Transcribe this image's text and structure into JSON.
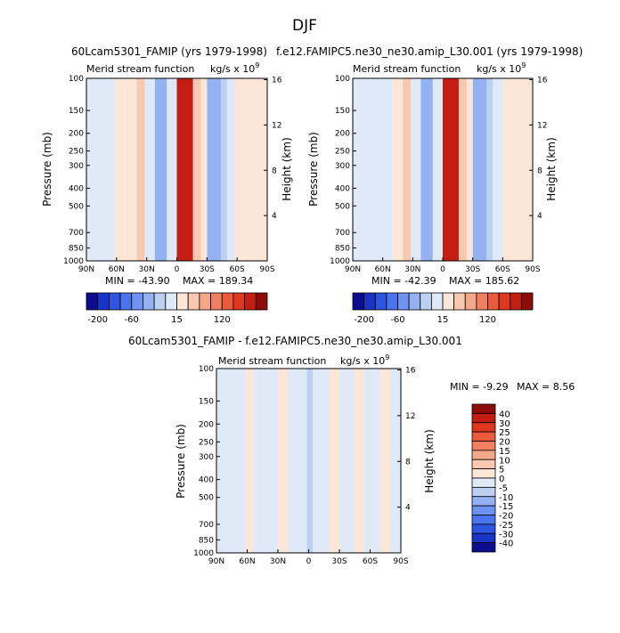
{
  "page_title": "DJF",
  "colors": {
    "neg": [
      "#0c0c8f",
      "#1a33c7",
      "#2d55e0",
      "#4a74ee",
      "#6f93f2",
      "#94b2f2",
      "#bcd1f2",
      "#dfe9f7"
    ],
    "pos": [
      "#fbe6d8",
      "#f8c9b0",
      "#f5a888",
      "#f08060",
      "#ea5a3c",
      "#e0381f",
      "#c41e12",
      "#8d0c08"
    ]
  },
  "chart_data": [
    {
      "type": "contour",
      "title": "60Lcam5301_FAMIP (yrs 1979-1998)",
      "field_label": "Merid stream function",
      "units_label": "kg/s x 10",
      "units_exp": "9",
      "ylabel": "Pressure (mb)",
      "ylabel_right": "Height (km)",
      "x_ticks": [
        "90N",
        "60N",
        "30N",
        "0",
        "30S",
        "60S",
        "90S"
      ],
      "y_ticks": [
        "100",
        "150",
        "200",
        "250",
        "300",
        "400",
        "500",
        "700",
        "850",
        "1000"
      ],
      "y_right_ticks": [
        "16",
        "12",
        "8",
        "4"
      ],
      "min_label": "MIN = -43.90",
      "max_label": "MAX = 189.34",
      "colorbar_labels": [
        "-200",
        "-60",
        "15",
        "120"
      ],
      "cells": [
        {
          "lat_from": -90,
          "lat_to": -58,
          "level": 8
        },
        {
          "lat_from": -58,
          "lat_to": -50,
          "level": 7
        },
        {
          "lat_from": -50,
          "lat_to": -44,
          "level": 6
        },
        {
          "lat_from": -44,
          "lat_to": -30,
          "level": 5
        },
        {
          "lat_from": -30,
          "lat_to": -24,
          "level": 8
        },
        {
          "lat_from": -24,
          "lat_to": -16,
          "level": 9
        },
        {
          "lat_from": -16,
          "lat_to": 0,
          "level": 14
        },
        {
          "lat_from": 0,
          "lat_to": 10,
          "level": 7
        },
        {
          "lat_from": 10,
          "lat_to": 22,
          "level": 5
        },
        {
          "lat_from": 22,
          "lat_to": 32,
          "level": 7
        },
        {
          "lat_from": 32,
          "lat_to": 40,
          "level": 9
        },
        {
          "lat_from": 40,
          "lat_to": 52,
          "level": 8
        },
        {
          "lat_from": 52,
          "lat_to": 62,
          "level": 8
        },
        {
          "lat_from": 62,
          "lat_to": 90,
          "level": 7
        }
      ]
    },
    {
      "type": "contour",
      "title": "f.e12.FAMIPC5.ne30_ne30.amip_L30.001 (yrs 1979-1998)",
      "field_label": "Merid stream function",
      "units_label": "kg/s x 10",
      "units_exp": "9",
      "ylabel": "Pressure (mb)",
      "ylabel_right": "Height (km)",
      "x_ticks": [
        "90N",
        "60N",
        "30N",
        "0",
        "30S",
        "60S",
        "90S"
      ],
      "y_ticks": [
        "100",
        "150",
        "200",
        "250",
        "300",
        "400",
        "500",
        "700",
        "850",
        "1000"
      ],
      "y_right_ticks": [
        "16",
        "12",
        "8",
        "4"
      ],
      "min_label": "MIN = -42.39",
      "max_label": "MAX = 185.62",
      "colorbar_labels": [
        "-200",
        "-60",
        "15",
        "120"
      ],
      "cells": [
        {
          "lat_from": -90,
          "lat_to": -60,
          "level": 8
        },
        {
          "lat_from": -60,
          "lat_to": -50,
          "level": 7
        },
        {
          "lat_from": -50,
          "lat_to": -44,
          "level": 6
        },
        {
          "lat_from": -44,
          "lat_to": -30,
          "level": 5
        },
        {
          "lat_from": -30,
          "lat_to": -24,
          "level": 8
        },
        {
          "lat_from": -24,
          "lat_to": -16,
          "level": 9
        },
        {
          "lat_from": -16,
          "lat_to": 0,
          "level": 14
        },
        {
          "lat_from": 0,
          "lat_to": 10,
          "level": 7
        },
        {
          "lat_from": 10,
          "lat_to": 22,
          "level": 5
        },
        {
          "lat_from": 22,
          "lat_to": 32,
          "level": 7
        },
        {
          "lat_from": 32,
          "lat_to": 40,
          "level": 9
        },
        {
          "lat_from": 40,
          "lat_to": 50,
          "level": 8
        },
        {
          "lat_from": 50,
          "lat_to": 62,
          "level": 7
        },
        {
          "lat_from": 62,
          "lat_to": 90,
          "level": 7
        }
      ]
    },
    {
      "type": "contour",
      "title": "60Lcam5301_FAMIP - f.e12.FAMIPC5.ne30_ne30.amip_L30.001",
      "field_label": "Merid stream function",
      "units_label": "kg/s x 10",
      "units_exp": "9",
      "ylabel": "Pressure (mb)",
      "ylabel_right": "Height (km)",
      "x_ticks": [
        "90N",
        "60N",
        "30N",
        "0",
        "30S",
        "60S",
        "90S"
      ],
      "y_ticks": [
        "100",
        "150",
        "200",
        "250",
        "300",
        "400",
        "500",
        "700",
        "850",
        "1000"
      ],
      "y_right_ticks": [
        "16",
        "12",
        "8",
        "4"
      ],
      "min_label": "MIN = -9.29",
      "max_label": "MAX = 8.56",
      "colorbar_labels": [
        "40",
        "30",
        "25",
        "20",
        "15",
        "10",
        "5",
        "0",
        "-5",
        "-10",
        "-15",
        "-20",
        "-25",
        "-30",
        "-40"
      ],
      "cells": [
        {
          "lat_from": -90,
          "lat_to": -80,
          "level": 7
        },
        {
          "lat_from": -80,
          "lat_to": -70,
          "level": 8
        },
        {
          "lat_from": -70,
          "lat_to": -54,
          "level": 7
        },
        {
          "lat_from": -54,
          "lat_to": -44,
          "level": 8
        },
        {
          "lat_from": -44,
          "lat_to": -30,
          "level": 7
        },
        {
          "lat_from": -30,
          "lat_to": -20,
          "level": 8
        },
        {
          "lat_from": -20,
          "lat_to": -4,
          "level": 7
        },
        {
          "lat_from": -4,
          "lat_to": 2,
          "level": 6
        },
        {
          "lat_from": 2,
          "lat_to": 10,
          "level": 7
        },
        {
          "lat_from": 10,
          "lat_to": 20,
          "level": 7
        },
        {
          "lat_from": 20,
          "lat_to": 30,
          "level": 8
        },
        {
          "lat_from": 30,
          "lat_to": 44,
          "level": 7
        },
        {
          "lat_from": 44,
          "lat_to": 54,
          "level": 7
        },
        {
          "lat_from": 54,
          "lat_to": 62,
          "level": 8
        },
        {
          "lat_from": 62,
          "lat_to": 90,
          "level": 7
        }
      ]
    }
  ]
}
